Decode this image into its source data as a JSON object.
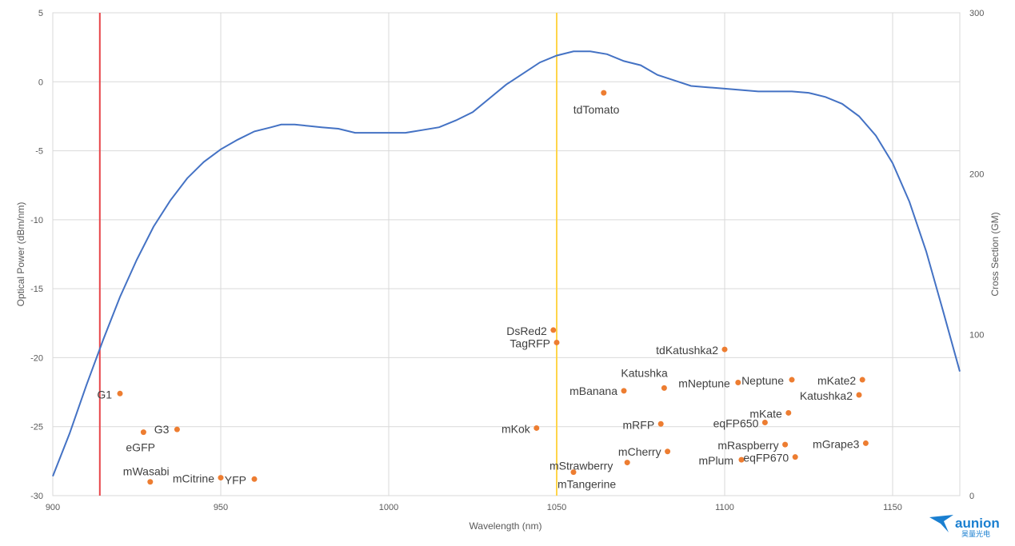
{
  "chart_data": {
    "type": "scatter",
    "xlabel": "Wavelength (nm)",
    "ylabel_left": "Optical Power (dBm/nm)",
    "ylabel_right": "Cross Section (GM)",
    "xlim": [
      900,
      1170
    ],
    "ylim_left": [
      -30,
      5
    ],
    "ylim_right": [
      0,
      300
    ],
    "x_ticks": [
      900,
      950,
      1000,
      1050,
      1100,
      1150
    ],
    "y_ticks_left": [
      5,
      0,
      -5,
      -10,
      -15,
      -20,
      -25,
      -30
    ],
    "y_ticks_right": [
      300,
      200,
      100,
      0
    ],
    "grid": true,
    "vertical_lines": [
      {
        "x": 914,
        "color": "#e8454a"
      },
      {
        "x": 1050,
        "color": "#ffd54a"
      }
    ],
    "spectrum_series": {
      "color": "#4472c4",
      "points": [
        [
          900,
          -28.6
        ],
        [
          905,
          -25.5
        ],
        [
          910,
          -22.0
        ],
        [
          915,
          -18.7
        ],
        [
          920,
          -15.6
        ],
        [
          925,
          -12.9
        ],
        [
          930,
          -10.5
        ],
        [
          935,
          -8.6
        ],
        [
          940,
          -7.0
        ],
        [
          945,
          -5.8
        ],
        [
          950,
          -4.9
        ],
        [
          955,
          -4.2
        ],
        [
          960,
          -3.6
        ],
        [
          965,
          -3.3
        ],
        [
          968,
          -3.1
        ],
        [
          972,
          -3.1
        ],
        [
          976,
          -3.2
        ],
        [
          980,
          -3.3
        ],
        [
          985,
          -3.4
        ],
        [
          990,
          -3.7
        ],
        [
          995,
          -3.7
        ],
        [
          1000,
          -3.7
        ],
        [
          1005,
          -3.7
        ],
        [
          1010,
          -3.5
        ],
        [
          1015,
          -3.3
        ],
        [
          1020,
          -2.8
        ],
        [
          1025,
          -2.2
        ],
        [
          1030,
          -1.2
        ],
        [
          1035,
          -0.2
        ],
        [
          1040,
          0.6
        ],
        [
          1045,
          1.4
        ],
        [
          1050,
          1.9
        ],
        [
          1055,
          2.2
        ],
        [
          1060,
          2.2
        ],
        [
          1065,
          2.0
        ],
        [
          1070,
          1.5
        ],
        [
          1075,
          1.2
        ],
        [
          1080,
          0.5
        ],
        [
          1085,
          0.1
        ],
        [
          1090,
          -0.3
        ],
        [
          1095,
          -0.4
        ],
        [
          1100,
          -0.5
        ],
        [
          1105,
          -0.6
        ],
        [
          1110,
          -0.7
        ],
        [
          1115,
          -0.7
        ],
        [
          1120,
          -0.7
        ],
        [
          1125,
          -0.8
        ],
        [
          1130,
          -1.1
        ],
        [
          1135,
          -1.6
        ],
        [
          1140,
          -2.5
        ],
        [
          1145,
          -3.9
        ],
        [
          1150,
          -5.9
        ],
        [
          1155,
          -8.7
        ],
        [
          1160,
          -12.3
        ],
        [
          1165,
          -16.6
        ],
        [
          1170,
          -21.0
        ]
      ]
    },
    "proteins": {
      "color": "#ed7d31",
      "points": [
        {
          "name": "G1",
          "x": 920,
          "y": -22.6
        },
        {
          "name": "G3",
          "x": 937,
          "y": -25.2
        },
        {
          "name": "eGFP",
          "x": 927,
          "y": -25.4
        },
        {
          "name": "mWasabi",
          "x": 929,
          "y": -29.0
        },
        {
          "name": "mCitrine",
          "x": 950,
          "y": -28.7
        },
        {
          "name": "YFP",
          "x": 960,
          "y": -28.8
        },
        {
          "name": "DsRed2",
          "x": 1049,
          "y": -18.0
        },
        {
          "name": "TagRFP",
          "x": 1050,
          "y": -18.9
        },
        {
          "name": "mKok",
          "x": 1044,
          "y": -25.1
        },
        {
          "name": "mStrawberry",
          "x": 1055,
          "y": -28.3
        },
        {
          "name": "mTangerine",
          "x": 1055,
          "y": -28.3
        },
        {
          "name": "tdTomato",
          "x": 1064,
          "y": -0.8
        },
        {
          "name": "mBanana",
          "x": 1070,
          "y": -22.4
        },
        {
          "name": "Katushka",
          "x": 1082,
          "y": -22.2
        },
        {
          "name": "mNeptune",
          "x": 1104,
          "y": -21.8
        },
        {
          "name": "mRFP",
          "x": 1081,
          "y": -24.8
        },
        {
          "name": "mCherry",
          "x": 1083,
          "y": -26.8
        },
        {
          "name": "tdKatushka2",
          "x": 1100,
          "y": -19.4
        },
        {
          "name": "Neptune",
          "x": 1120,
          "y": -21.6
        },
        {
          "name": "mKate2",
          "x": 1141,
          "y": -21.6
        },
        {
          "name": "Katushka2",
          "x": 1140,
          "y": -22.7
        },
        {
          "name": "mKate",
          "x": 1119,
          "y": -24.0
        },
        {
          "name": "eqFP650",
          "x": 1112,
          "y": -24.7
        },
        {
          "name": "mRaspberry",
          "x": 1118,
          "y": -26.3
        },
        {
          "name": "mGrape3",
          "x": 1142,
          "y": -26.2
        },
        {
          "name": "mPlum",
          "x": 1105,
          "y": -27.4
        },
        {
          "name": "eqFP670",
          "x": 1121,
          "y": -27.2
        },
        {
          "name": "mStrawberry_dot2",
          "x": 1071,
          "y": -27.6
        }
      ]
    }
  },
  "logo": {
    "name": "aunion",
    "subtitle": "昊量光电"
  }
}
